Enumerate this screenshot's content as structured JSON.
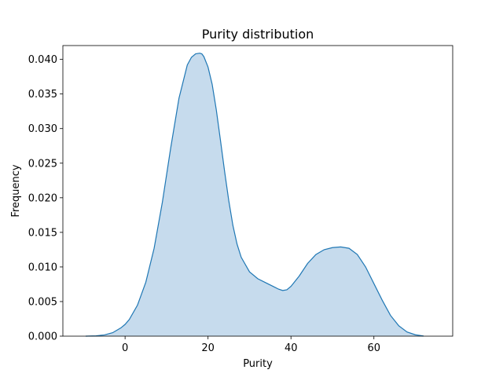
{
  "chart_data": {
    "type": "area",
    "title": "Purity distribution",
    "xlabel": "Purity",
    "ylabel": "Frequency",
    "xlim": [
      -15,
      79
    ],
    "ylim": [
      0,
      0.042
    ],
    "xticks": [
      0,
      20,
      40,
      60
    ],
    "xtick_labels": [
      "0",
      "20",
      "40",
      "60"
    ],
    "yticks": [
      0,
      0.005,
      0.01,
      0.015,
      0.02,
      0.025,
      0.03,
      0.035,
      0.04
    ],
    "ytick_labels": [
      "0.000",
      "0.005",
      "0.010",
      "0.015",
      "0.020",
      "0.025",
      "0.030",
      "0.035",
      "0.040"
    ],
    "grid": false,
    "line_color": "#1f77b4",
    "fill_color": "#c6dbed",
    "x": [
      -9.5,
      -7,
      -5,
      -3,
      -1,
      0,
      1,
      3,
      5,
      7,
      9,
      11,
      13,
      15,
      16,
      17,
      18,
      18.5,
      19,
      20,
      21,
      22,
      23,
      24,
      25,
      26,
      27,
      28,
      30,
      32,
      34,
      36,
      37,
      38,
      39,
      40,
      42,
      44,
      46,
      48,
      50,
      52,
      54,
      56,
      58,
      60,
      62,
      64,
      66,
      68,
      70,
      72
    ],
    "y": [
      0.0,
      5e-05,
      0.00018,
      0.0005,
      0.0012,
      0.0017,
      0.0024,
      0.0045,
      0.0078,
      0.0127,
      0.0194,
      0.0272,
      0.0344,
      0.0392,
      0.0403,
      0.0408,
      0.0409,
      0.0408,
      0.0404,
      0.0389,
      0.0364,
      0.0327,
      0.0283,
      0.0238,
      0.0196,
      0.016,
      0.0133,
      0.0114,
      0.0093,
      0.0083,
      0.0077,
      0.0071,
      0.0068,
      0.0066,
      0.0067,
      0.0072,
      0.0087,
      0.0105,
      0.0118,
      0.0125,
      0.0128,
      0.0129,
      0.0127,
      0.0118,
      0.01,
      0.0076,
      0.0052,
      0.003,
      0.0015,
      0.0006,
      0.0002,
      2e-05
    ]
  }
}
